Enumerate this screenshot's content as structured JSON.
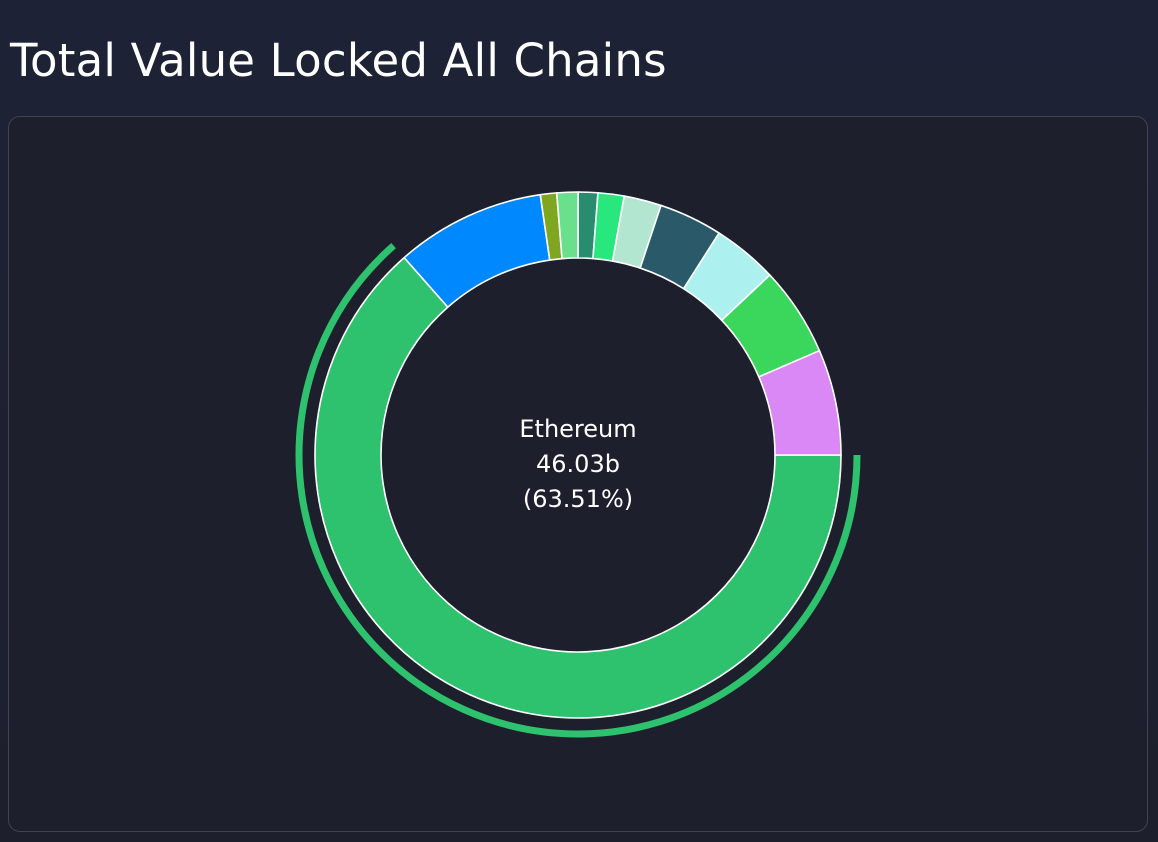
{
  "page": {
    "title": "Total Value Locked All Chains"
  },
  "chart_data": {
    "type": "pie",
    "variant": "donut",
    "highlighted_index": 0,
    "center": {
      "name": "Ethereum",
      "value": "46.03b",
      "percent": "(63.51%)"
    },
    "slices": [
      {
        "name": "Ethereum",
        "percent": 63.51,
        "color": "#2ec26e"
      },
      {
        "name": "",
        "percent": 9.2,
        "color": "#0088ff"
      },
      {
        "name": "",
        "percent": 1.0,
        "color": "#7fa620"
      },
      {
        "name": "",
        "percent": 1.3,
        "color": "#6be08c"
      },
      {
        "name": "",
        "percent": 1.2,
        "color": "#2a8c6e"
      },
      {
        "name": "",
        "percent": 1.6,
        "color": "#28e87d"
      },
      {
        "name": "",
        "percent": 2.3,
        "color": "#b3e6d1"
      },
      {
        "name": "",
        "percent": 3.9,
        "color": "#2a5a69"
      },
      {
        "name": "",
        "percent": 4.0,
        "color": "#adf0f0"
      },
      {
        "name": "",
        "percent": 5.5,
        "color": "#3bd65c"
      },
      {
        "name": "",
        "percent": 6.49,
        "color": "#d988f5"
      }
    ]
  }
}
